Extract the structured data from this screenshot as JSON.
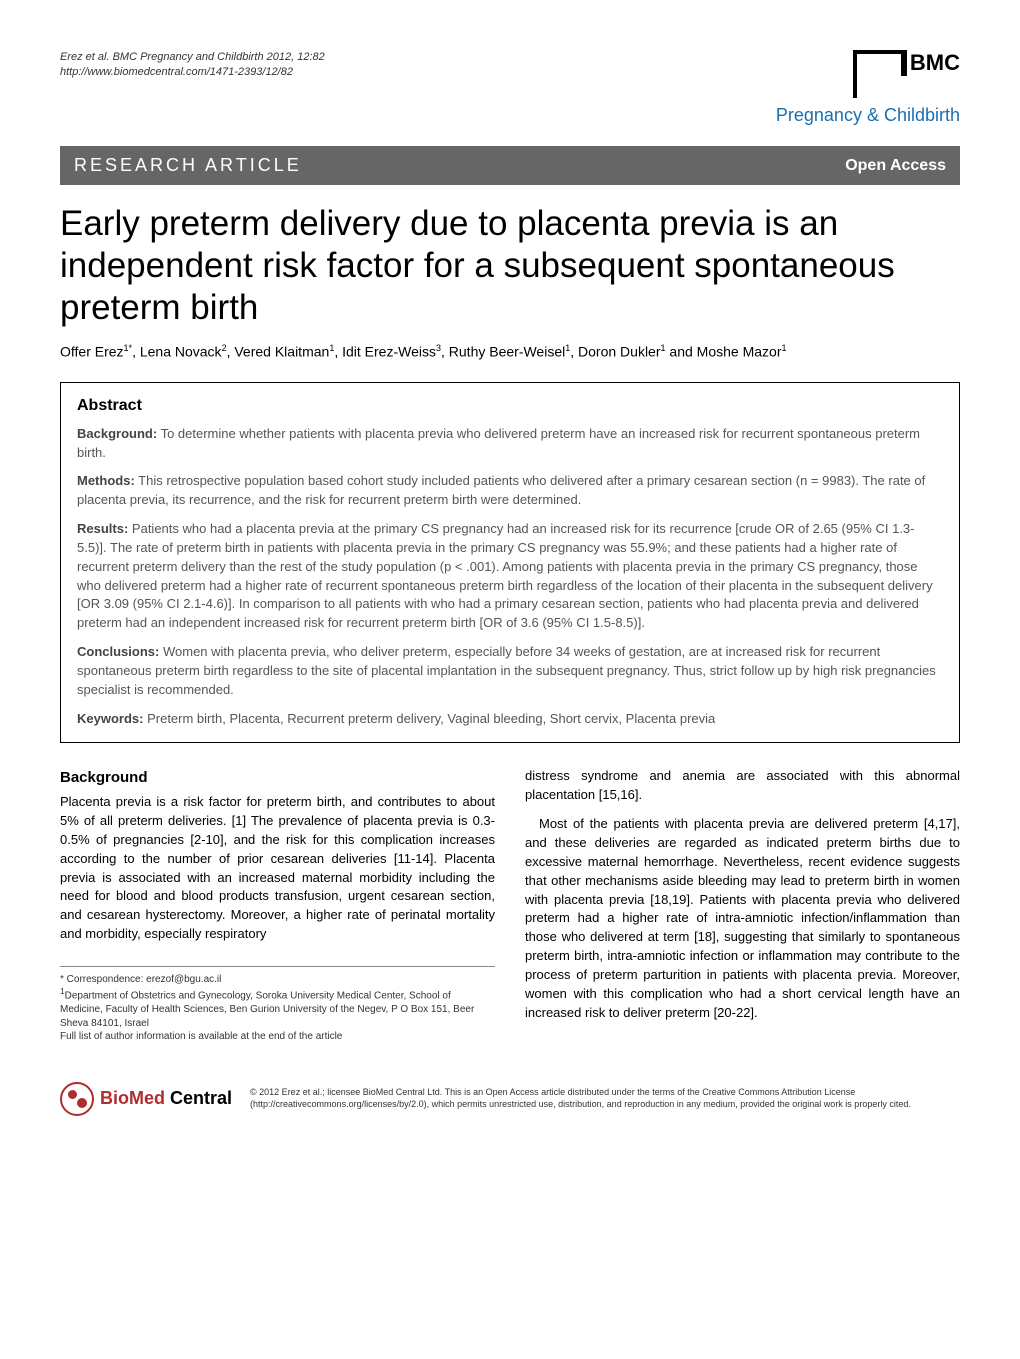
{
  "header": {
    "citation_line1": "Erez et al. BMC Pregnancy and Childbirth 2012, 12:82",
    "citation_line2": "http://www.biomedcentral.com/1471-2393/12/82",
    "logo_main": "BMC",
    "logo_sub": "Pregnancy & Childbirth"
  },
  "bar": {
    "left": "RESEARCH ARTICLE",
    "right": "Open Access"
  },
  "title": "Early preterm delivery due to placenta previa is an independent risk factor for a subsequent spontaneous preterm birth",
  "authors_html": "Offer Erez<sup>1*</sup>, Lena Novack<sup>2</sup>, Vered Klaitman<sup>1</sup>, Idit Erez-Weiss<sup>3</sup>, Ruthy Beer-Weisel<sup>1</sup>, Doron Dukler<sup>1</sup> and Moshe Mazor<sup>1</sup>",
  "abstract": {
    "heading": "Abstract",
    "background_label": "Background:",
    "background": "To determine whether patients with placenta previa who delivered preterm have an increased risk for recurrent spontaneous preterm birth.",
    "methods_label": "Methods:",
    "methods": "This retrospective population based cohort study included patients who delivered after a primary cesarean section (n = 9983). The rate of placenta previa, its recurrence, and the risk for recurrent preterm birth were determined.",
    "results_label": "Results:",
    "results": "Patients who had a placenta previa at the primary CS pregnancy had an increased risk for its recurrence [crude OR of 2.65 (95% CI 1.3-5.5)]. The rate of preterm birth in patients with placenta previa in the primary CS pregnancy was 55.9%; and these patients had a higher rate of recurrent preterm delivery than the rest of the study population (p < .001). Among patients with placenta previa in the primary CS pregnancy, those who delivered preterm had a higher rate of recurrent spontaneous preterm birth regardless of the location of their placenta in the subsequent delivery [OR 3.09 (95% CI 2.1-4.6)]. In comparison to all patients with who had a primary cesarean section, patients who had placenta previa and delivered preterm had an independent increased risk for recurrent preterm birth [OR of 3.6 (95% CI 1.5-8.5)].",
    "conclusions_label": "Conclusions:",
    "conclusions": "Women with placenta previa, who deliver preterm, especially before 34 weeks of gestation, are at increased risk for recurrent spontaneous preterm birth regardless to the site of placental implantation in the subsequent pregnancy. Thus, strict follow up by high risk pregnancies specialist is recommended.",
    "keywords_label": "Keywords:",
    "keywords": "Preterm birth, Placenta, Recurrent preterm delivery, Vaginal bleeding, Short cervix, Placenta previa"
  },
  "body": {
    "background_heading": "Background",
    "col1": "Placenta previa is a risk factor for preterm birth, and contributes to about 5% of all preterm deliveries. [1] The prevalence of placenta previa is 0.3-0.5% of pregnancies [2-10], and the risk for this complication increases according to the number of prior cesarean deliveries [11-14]. Placenta previa is associated with an increased maternal morbidity including the need for blood and blood products transfusion, urgent cesarean section, and cesarean hysterectomy. Moreover, a higher rate of perinatal mortality and morbidity, especially respiratory",
    "col2a": "distress syndrome and anemia are associated with this abnormal placentation [15,16].",
    "col2b": "Most of the patients with placenta previa are delivered preterm [4,17], and these deliveries are regarded as indicated preterm births due to excessive maternal hemorrhage. Nevertheless, recent evidence suggests that other mechanisms aside bleeding may lead to preterm birth in women with placenta previa [18,19]. Patients with placenta previa who delivered preterm had a higher rate of intra-amniotic infection/inflammation than those who delivered at term [18], suggesting that similarly to spontaneous preterm birth, intra-amniotic infection or inflammation may contribute to the process of preterm parturition in patients with placenta previa. Moreover, women with this complication who had a short cervical length have an increased risk to deliver preterm [20-22]."
  },
  "footnotes": {
    "correspondence": "* Correspondence: erezof@bgu.ac.il",
    "affiliation": "1Department of Obstetrics and Gynecology, Soroka University Medical Center, School of Medicine, Faculty of Health Sciences, Ben Gurion University of the Negev, P O Box 151, Beer Sheva 84101, Israel",
    "full_list": "Full list of author information is available at the end of the article"
  },
  "footer": {
    "logo_bio": "BioMed",
    "logo_central": " Central",
    "license": "© 2012 Erez et al.; licensee BioMed Central Ltd. This is an Open Access article distributed under the terms of the Creative Commons Attribution License (http://creativecommons.org/licenses/by/2.0), which permits unrestricted use, distribution, and reproduction in any medium, provided the original work is properly cited."
  }
}
